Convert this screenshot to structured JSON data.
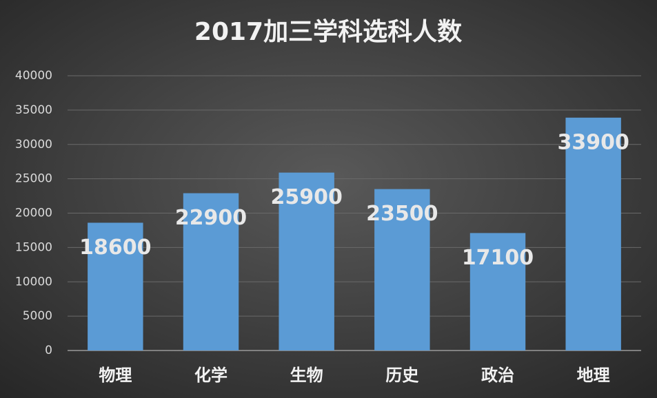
{
  "chart_data": {
    "type": "bar",
    "title": "2017加三学科选科人数",
    "categories": [
      "物理",
      "化学",
      "生物",
      "历史",
      "政治",
      "地理"
    ],
    "values": [
      18600,
      22900,
      25900,
      23500,
      17100,
      33900
    ],
    "color": "#5b9bd5",
    "ylim": [
      0,
      40000
    ],
    "yticks": [
      0,
      5000,
      10000,
      15000,
      20000,
      25000,
      30000,
      35000,
      40000
    ],
    "grid": true
  }
}
